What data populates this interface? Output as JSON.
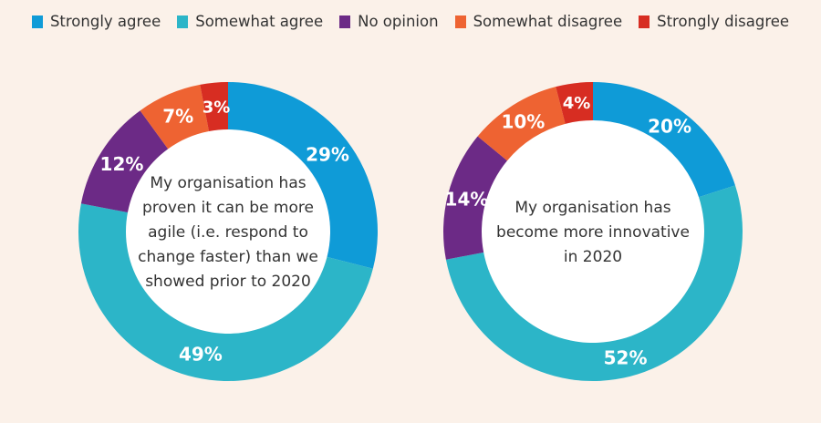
{
  "chart_data": [
    {
      "type": "pie",
      "variant": "donut",
      "title": "My organisation has proven it can be more agile (i.e. respond to change faster) than we showed prior to 2020",
      "center_lines": [
        "My organisation has",
        "proven it can be more",
        "agile (i.e. respond to",
        "change faster) than we",
        "showed prior to 2020"
      ],
      "categories": [
        "Strongly agree",
        "Somewhat agree",
        "No opinion",
        "Somewhat disagree",
        "Strongly disagree"
      ],
      "values": [
        29,
        49,
        12,
        7,
        3
      ],
      "labels": [
        "29%",
        "49%",
        "12%",
        "7%",
        "3%"
      ]
    },
    {
      "type": "pie",
      "variant": "donut",
      "title": "My organisation has become more innovative in 2020",
      "center_lines": [
        "My organisation has",
        "become more innovative",
        "in 2020"
      ],
      "categories": [
        "Strongly agree",
        "Somewhat agree",
        "No opinion",
        "Somewhat disagree",
        "Strongly disagree"
      ],
      "values": [
        20,
        52,
        14,
        10,
        4
      ],
      "labels": [
        "20%",
        "52%",
        "14%",
        "10%",
        "4%"
      ]
    }
  ],
  "legend": {
    "placement": "top-center",
    "items": [
      {
        "label": "Strongly agree",
        "color": "#0f9bd7"
      },
      {
        "label": "Somewhat agree",
        "color": "#2cb5c8"
      },
      {
        "label": "No opinion",
        "color": "#6c2a86"
      },
      {
        "label": "Somewhat disagree",
        "color": "#ee6332"
      },
      {
        "label": "Strongly disagree",
        "color": "#d72d22"
      }
    ]
  }
}
